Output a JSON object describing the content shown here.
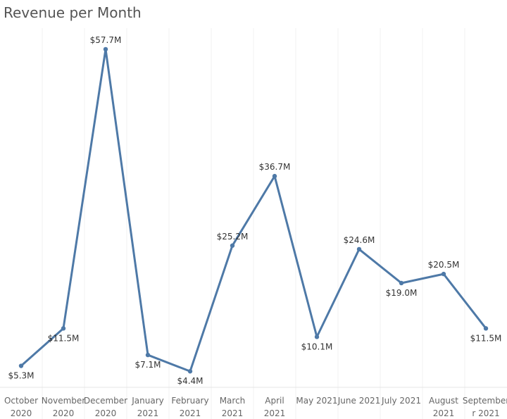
{
  "chart_data": {
    "type": "line",
    "title": "Revenue per Month",
    "xlabel": "",
    "ylabel": "",
    "categories": [
      "October 2020",
      "November 2020",
      "December 2020",
      "January 2021",
      "February 2021",
      "March 2021",
      "April 2021",
      "May 2021",
      "June 2021",
      "July 2021",
      "August 2021",
      "September 2021"
    ],
    "tick_labels": [
      [
        "October",
        "2020"
      ],
      [
        "November",
        "2020"
      ],
      [
        "December",
        "2020"
      ],
      [
        "January",
        "2021"
      ],
      [
        "February",
        "2021"
      ],
      [
        "March",
        "2021"
      ],
      [
        "April",
        "2021"
      ],
      [
        "May 2021"
      ],
      [
        "June 2021"
      ],
      [
        "July 2021"
      ],
      [
        "August",
        "2021"
      ],
      [
        "September",
        "r 2021"
      ]
    ],
    "values": [
      5.3,
      11.5,
      57.7,
      7.1,
      4.4,
      25.2,
      36.7,
      10.1,
      24.6,
      19.0,
      20.5,
      11.5
    ],
    "data_labels": [
      "$5.3M",
      "$11.5M",
      "$57.7M",
      "$7.1M",
      "$4.4M",
      "$25.2M",
      "$36.7M",
      "$10.1M",
      "$24.6M",
      "$19.0M",
      "$20.5M",
      "$11.5M"
    ],
    "label_side": [
      "below",
      "below",
      "above",
      "below",
      "below",
      "above",
      "above",
      "below",
      "above",
      "below",
      "above",
      "below"
    ],
    "ylim": [
      0,
      60
    ],
    "grid": false,
    "line_color": "#4e79a7"
  }
}
